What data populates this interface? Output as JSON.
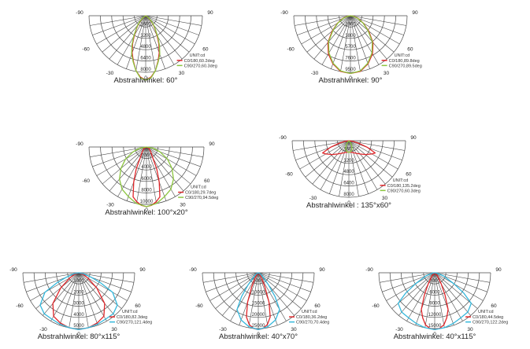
{
  "colors": {
    "grid": "#4a4a4a",
    "c0": "#e0262a",
    "c90_green": "#8cc63f",
    "c90_cyan": "#35b8dc",
    "text": "#222222"
  },
  "chart_data": [
    {
      "type": "polar",
      "title": "Abstrahlwinkel: 60°",
      "angle_labels": [
        "-90",
        "90",
        "-60",
        "60",
        "-30",
        "30",
        "0"
      ],
      "radial_ticks": [
        "1600",
        "3200",
        "4800",
        "6400",
        "8000"
      ],
      "rmax": 8000,
      "unit": "UNIT:cd",
      "series": [
        {
          "name": "C0/180,60.2deg",
          "color": "#e0262a",
          "points": [
            [
              0,
              9100
            ],
            [
              5,
              8700
            ],
            [
              10,
              7900
            ],
            [
              15,
              6700
            ],
            [
              20,
              5600
            ],
            [
              25,
              4400
            ],
            [
              30,
              3200
            ],
            [
              35,
              2300
            ],
            [
              40,
              1700
            ],
            [
              45,
              1100
            ],
            [
              50,
              600
            ],
            [
              55,
              250
            ],
            [
              60,
              0
            ]
          ]
        },
        {
          "name": "C90/270,60.3deg",
          "color": "#8cc63f",
          "points": [
            [
              0,
              9100
            ],
            [
              5,
              8800
            ],
            [
              10,
              7900
            ],
            [
              15,
              6800
            ],
            [
              20,
              5800
            ],
            [
              25,
              4600
            ],
            [
              30,
              3400
            ],
            [
              35,
              2400
            ],
            [
              40,
              1800
            ],
            [
              45,
              1200
            ],
            [
              50,
              700
            ],
            [
              55,
              300
            ],
            [
              60,
              0
            ]
          ]
        }
      ]
    },
    {
      "type": "polar",
      "title": "Abstrahlwinkel: 90°",
      "angle_labels": [
        "-90",
        "90",
        "-60",
        "60",
        "-30",
        "30",
        "0"
      ],
      "radial_ticks": [
        "1900",
        "3800",
        "5700",
        "7600",
        "9500"
      ],
      "rmax": 9500,
      "unit": "UNIT:cd",
      "series": [
        {
          "name": "C0/180,89.8deg",
          "color": "#e0262a",
          "points": [
            [
              0,
              9700
            ],
            [
              10,
              9500
            ],
            [
              20,
              8600
            ],
            [
              30,
              7400
            ],
            [
              40,
              5900
            ],
            [
              50,
              4000
            ],
            [
              60,
              2500
            ],
            [
              70,
              1400
            ],
            [
              80,
              600
            ],
            [
              90,
              0
            ]
          ]
        },
        {
          "name": "C90/270,89.5deg",
          "color": "#8cc63f",
          "points": [
            [
              0,
              9700
            ],
            [
              10,
              9400
            ],
            [
              20,
              8500
            ],
            [
              30,
              7200
            ],
            [
              40,
              5700
            ],
            [
              50,
              3800
            ],
            [
              60,
              2400
            ],
            [
              70,
              1300
            ],
            [
              80,
              500
            ],
            [
              90,
              0
            ]
          ]
        }
      ]
    },
    {
      "type": "polar",
      "title": "Abstrahlwinkel: 100°x20°",
      "angle_labels": [
        "-90",
        "90",
        "-60",
        "60",
        "-30",
        "30",
        "0"
      ],
      "radial_ticks": [
        "2000",
        "4000",
        "6000",
        "8000",
        "10000"
      ],
      "rmax": 10000,
      "unit": "UNIT:cd",
      "series": [
        {
          "name": "C0/180,29.7deg",
          "color": "#e0262a",
          "points": [
            [
              0,
              10400
            ],
            [
              5,
              10200
            ],
            [
              10,
              9700
            ],
            [
              15,
              9000
            ],
            [
              20,
              6500
            ],
            [
              25,
              4200
            ],
            [
              30,
              2200
            ],
            [
              40,
              1200
            ],
            [
              60,
              500
            ],
            [
              90,
              0
            ]
          ]
        },
        {
          "name": "C90/270,94.5deg",
          "color": "#8cc63f",
          "points": [
            [
              0,
              10400
            ],
            [
              10,
              10000
            ],
            [
              20,
              9200
            ],
            [
              30,
              8500
            ],
            [
              40,
              7300
            ],
            [
              50,
              5800
            ],
            [
              60,
              4200
            ],
            [
              70,
              2500
            ],
            [
              80,
              1200
            ],
            [
              90,
              0
            ]
          ]
        }
      ]
    },
    {
      "type": "polar",
      "title": "Abstrahlwinkel : 135°x60°",
      "angle_labels": [
        "-90",
        "90",
        "-60",
        "60",
        "-30",
        "30",
        "0"
      ],
      "radial_ticks": [
        "1600",
        "3200",
        "4800",
        "6400",
        "8000"
      ],
      "rmax": 8000,
      "unit": "UNIT:cd",
      "series": [
        {
          "name": "C0/180,135.2deg",
          "color": "#e0262a",
          "points": [
            [
              0,
              1600
            ],
            [
              10,
              1650
            ],
            [
              20,
              1800
            ],
            [
              30,
              2050
            ],
            [
              40,
              2450
            ],
            [
              50,
              3050
            ],
            [
              60,
              3750
            ],
            [
              65,
              4100
            ],
            [
              70,
              2800
            ],
            [
              75,
              1500
            ],
            [
              80,
              600
            ],
            [
              90,
              0
            ]
          ]
        },
        {
          "name": "C90/270,60.3deg",
          "color": "#8cc63f",
          "points": [
            [
              0,
              1650
            ],
            [
              10,
              1550
            ],
            [
              20,
              1300
            ],
            [
              30,
              800
            ],
            [
              40,
              300
            ],
            [
              50,
              0
            ]
          ]
        }
      ]
    },
    {
      "type": "polar",
      "title": "Abstrahlwinkel: 80°x115°",
      "angle_labels": [
        "-90",
        "90",
        "-60",
        "60",
        "-30",
        "30",
        "0"
      ],
      "radial_ticks": [
        "1000",
        "2000",
        "3000",
        "4000",
        "5000"
      ],
      "rmax": 5000,
      "unit": "UNIT:cd",
      "series": [
        {
          "name": "C0/180,82.3deg",
          "color": "#e0262a",
          "points": [
            [
              0,
              5100
            ],
            [
              10,
              5000
            ],
            [
              20,
              4800
            ],
            [
              30,
              4500
            ],
            [
              40,
              3600
            ],
            [
              50,
              2100
            ],
            [
              60,
              900
            ],
            [
              70,
              400
            ],
            [
              90,
              0
            ]
          ]
        },
        {
          "name": "C90/270,121.4deg",
          "color": "#35b8dc",
          "points": [
            [
              0,
              5100
            ],
            [
              10,
              5000
            ],
            [
              20,
              4900
            ],
            [
              30,
              4800
            ],
            [
              40,
              4800
            ],
            [
              50,
              4500
            ],
            [
              60,
              3500
            ],
            [
              65,
              2200
            ],
            [
              70,
              1200
            ],
            [
              80,
              400
            ],
            [
              90,
              0
            ]
          ]
        }
      ]
    },
    {
      "type": "polar",
      "title": "Abstrahlwinkel: 40°x70°",
      "angle_labels": [
        "-90",
        "90",
        "-60",
        "60",
        "-30",
        "30",
        "0"
      ],
      "radial_ticks": [
        "5000",
        "10000",
        "15000",
        "20000",
        "25000"
      ],
      "rmax": 25000,
      "unit": "UNIT:cd",
      "series": [
        {
          "name": "C0/180,36.2deg",
          "color": "#e0262a",
          "points": [
            [
              0,
              25500
            ],
            [
              5,
              25000
            ],
            [
              10,
              23500
            ],
            [
              15,
              20500
            ],
            [
              20,
              14000
            ],
            [
              25,
              7000
            ],
            [
              30,
              3000
            ],
            [
              40,
              800
            ],
            [
              90,
              0
            ]
          ]
        },
        {
          "name": "C90/270,70.4deg",
          "color": "#35b8dc",
          "points": [
            [
              0,
              25500
            ],
            [
              10,
              24500
            ],
            [
              20,
              22500
            ],
            [
              30,
              19000
            ],
            [
              35,
              13000
            ],
            [
              40,
              7000
            ],
            [
              50,
              2500
            ],
            [
              60,
              800
            ],
            [
              90,
              0
            ]
          ]
        }
      ]
    },
    {
      "type": "polar",
      "title": "Abstrahlwinkel: 40°x115°",
      "angle_labels": [
        "-90",
        "90",
        "-60",
        "60",
        "-30",
        "30",
        "0"
      ],
      "radial_ticks": [
        "3000",
        "6000",
        "9000",
        "12000",
        "15000"
      ],
      "rmax": 15000,
      "unit": "UNIT:cd",
      "series": [
        {
          "name": "C0/180,44.5deg",
          "color": "#e0262a",
          "points": [
            [
              0,
              15300
            ],
            [
              5,
              15000
            ],
            [
              10,
              14200
            ],
            [
              15,
              12500
            ],
            [
              20,
              10500
            ],
            [
              25,
              6500
            ],
            [
              30,
              3500
            ],
            [
              40,
              1200
            ],
            [
              90,
              0
            ]
          ]
        },
        {
          "name": "C90/270,122.2deg",
          "color": "#35b8dc",
          "points": [
            [
              0,
              15300
            ],
            [
              10,
              15000
            ],
            [
              20,
              14500
            ],
            [
              30,
              14000
            ],
            [
              40,
              13800
            ],
            [
              50,
              12800
            ],
            [
              55,
              9500
            ],
            [
              60,
              6000
            ],
            [
              70,
              2500
            ],
            [
              80,
              800
            ],
            [
              90,
              0
            ]
          ]
        }
      ]
    }
  ]
}
